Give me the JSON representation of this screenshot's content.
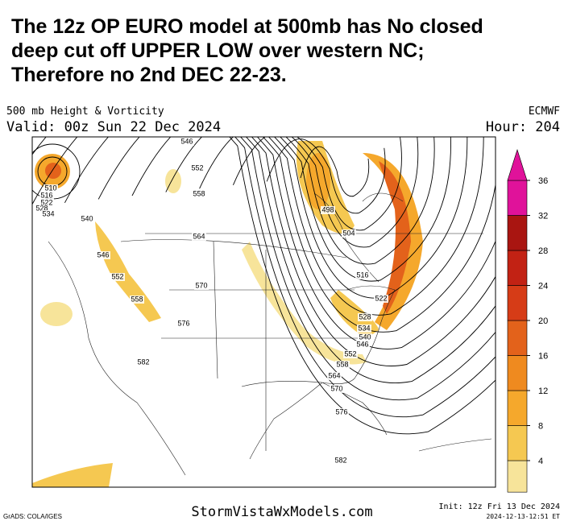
{
  "headline": {
    "lines": [
      "The  12z  OP  EURO model at 500mb has No closed",
      "deep cut off UPPER LOW  over western NC;",
      "Therefore  no 2nd DEC 22-23."
    ]
  },
  "map": {
    "title": "500 mb Height & Vorticity",
    "source": "ECMWF",
    "valid": "Valid: 00z Sun 22 Dec 2024",
    "hour": "Hour: 204",
    "contour_labels": [
      "510",
      "516",
      "522",
      "528",
      "534",
      "540",
      "546",
      "552",
      "558",
      "546",
      "552",
      "558",
      "564",
      "570",
      "576",
      "582",
      "498",
      "504",
      "516",
      "522",
      "528",
      "534",
      "540",
      "546",
      "552",
      "558",
      "564",
      "570",
      "576",
      "582"
    ],
    "colorbar": {
      "ticks": [
        4,
        8,
        12,
        16,
        20,
        24,
        28,
        32,
        36
      ],
      "colors": [
        "#f7e49a",
        "#f5c851",
        "#f5a82c",
        "#ef8a1f",
        "#e3621b",
        "#d63c17",
        "#c22214",
        "#a91511",
        "#e0129a"
      ]
    }
  },
  "footer": {
    "grads": "GrADS: COLA/IGES",
    "site": "StormVistaWxModels.com",
    "init": "Init: 12z Fri 13 Dec 2024",
    "timestamp": "2024-12-13-12:51 ET"
  }
}
